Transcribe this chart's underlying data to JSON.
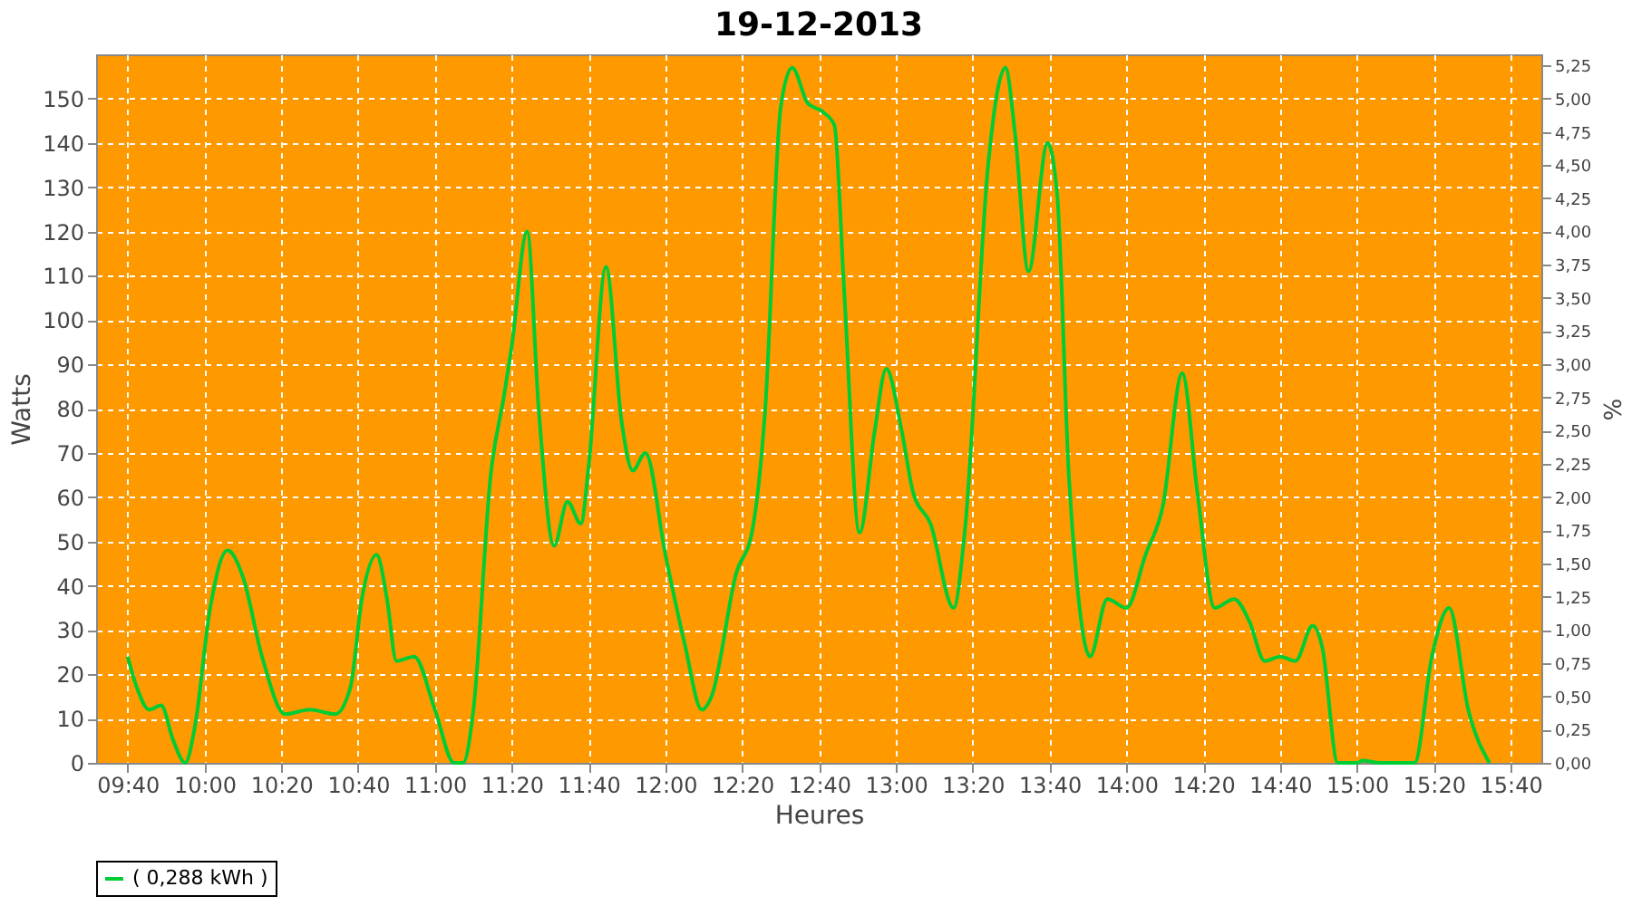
{
  "chart_data": {
    "type": "line",
    "title": "19-12-2013",
    "xlabel": "Heures",
    "ylabel": "Watts",
    "y2label": "%",
    "x": [
      9.667,
      9.707,
      9.76,
      9.812,
      9.865,
      9.917,
      9.958,
      10.025,
      10.1,
      10.167,
      10.25,
      10.35,
      10.458,
      10.567,
      10.633,
      10.683,
      10.747,
      10.792,
      10.833,
      10.91,
      11,
      11.083,
      11.122,
      11.167,
      11.242,
      11.3,
      11.333,
      11.4,
      11.45,
      11.517,
      11.575,
      11.633,
      11.667,
      11.742,
      11.81,
      11.858,
      11.913,
      12,
      12.083,
      12.158,
      12.2,
      12.308,
      12.375,
      12.433,
      12.5,
      12.55,
      12.617,
      12.683,
      12.733,
      12.775,
      12.842,
      12.908,
      12.958,
      13.025,
      13.075,
      13.15,
      13.25,
      13.3,
      13.4,
      13.475,
      13.517,
      13.575,
      13.658,
      13.7,
      13.75,
      13.783,
      13.842,
      13.917,
      14,
      14.083,
      14.158,
      14.242,
      14.308,
      14.383,
      14.467,
      14.533,
      14.6,
      14.667,
      14.733,
      14.808,
      14.85,
      14.917,
      15,
      15.025,
      15.1,
      15.15,
      15.25,
      15.325,
      15.4,
      15.483,
      15.575
    ],
    "series": [
      {
        "name": "( 0,288 kWh )",
        "color": "#00cc33",
        "values": [
          24,
          17,
          12,
          13,
          5,
          0,
          8,
          35,
          48,
          42,
          24,
          11,
          12,
          11,
          17,
          37,
          47,
          37,
          23,
          24,
          12,
          0,
          0,
          12,
          65,
          83,
          94,
          120,
          80,
          49,
          59,
          54,
          67,
          112,
          77,
          66,
          70,
          47,
          27,
          12,
          15,
          43,
          52,
          80,
          148,
          157,
          149,
          147,
          144,
          107,
          52,
          75,
          89,
          75,
          61,
          54,
          35,
          53,
          135,
          157,
          142,
          111,
          140,
          128,
          65,
          42,
          24,
          37,
          35,
          47,
          58,
          88,
          61,
          35,
          37,
          32,
          23,
          24,
          23,
          31,
          26,
          0,
          0,
          0.5,
          0,
          0,
          0,
          24,
          35,
          12,
          0
        ]
      }
    ],
    "xlim": [
      9.53,
      15.8
    ],
    "xticks": [
      {
        "value": 9.6667,
        "label": "09:40"
      },
      {
        "value": 10,
        "label": "10:00"
      },
      {
        "value": 10.3333,
        "label": "10:20"
      },
      {
        "value": 10.6667,
        "label": "10:40"
      },
      {
        "value": 11,
        "label": "11:00"
      },
      {
        "value": 11.3333,
        "label": "11:20"
      },
      {
        "value": 11.6667,
        "label": "11:40"
      },
      {
        "value": 12,
        "label": "12:00"
      },
      {
        "value": 12.3333,
        "label": "12:20"
      },
      {
        "value": 12.6667,
        "label": "12:40"
      },
      {
        "value": 13,
        "label": "13:00"
      },
      {
        "value": 13.3333,
        "label": "13:20"
      },
      {
        "value": 13.6667,
        "label": "13:40"
      },
      {
        "value": 14,
        "label": "14:00"
      },
      {
        "value": 14.3333,
        "label": "14:20"
      },
      {
        "value": 14.6667,
        "label": "14:40"
      },
      {
        "value": 15,
        "label": "15:00"
      },
      {
        "value": 15.3333,
        "label": "15:20"
      },
      {
        "value": 15.6667,
        "label": "15:40"
      }
    ],
    "ylim": [
      0,
      160
    ],
    "yticks": [
      0,
      10,
      20,
      30,
      40,
      50,
      60,
      70,
      80,
      90,
      100,
      110,
      120,
      130,
      140,
      150
    ],
    "y2lim": [
      0,
      5.3333
    ],
    "y2ticks": [
      {
        "value": 0,
        "label": "0,00"
      },
      {
        "value": 0.25,
        "label": "0,25"
      },
      {
        "value": 0.5,
        "label": "0,50"
      },
      {
        "value": 0.75,
        "label": "0,75"
      },
      {
        "value": 1,
        "label": "1,00"
      },
      {
        "value": 1.25,
        "label": "1,25"
      },
      {
        "value": 1.5,
        "label": "1,50"
      },
      {
        "value": 1.75,
        "label": "1,75"
      },
      {
        "value": 2,
        "label": "2,00"
      },
      {
        "value": 2.25,
        "label": "2,25"
      },
      {
        "value": 2.5,
        "label": "2,50"
      },
      {
        "value": 2.75,
        "label": "2,75"
      },
      {
        "value": 3,
        "label": "3,00"
      },
      {
        "value": 3.25,
        "label": "3,25"
      },
      {
        "value": 3.5,
        "label": "3,50"
      },
      {
        "value": 3.75,
        "label": "3,75"
      },
      {
        "value": 4,
        "label": "4,00"
      },
      {
        "value": 4.25,
        "label": "4,25"
      },
      {
        "value": 4.5,
        "label": "4,50"
      },
      {
        "value": 4.75,
        "label": "4,75"
      },
      {
        "value": 5,
        "label": "5,00"
      },
      {
        "value": 5.25,
        "label": "5,25"
      }
    ],
    "grid": true,
    "legend": "bottom",
    "marker": "none",
    "line_style": "solid"
  }
}
